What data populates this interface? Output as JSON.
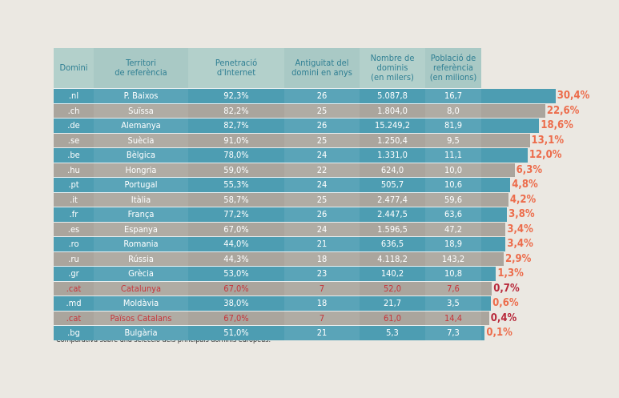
{
  "chart_data": {
    "type": "table",
    "headers": [
      "Domini",
      "Territori\nde referència",
      "Penetració\nd'Internet",
      "Antiguitat del\ndomini en anys",
      "Nombre de\ndominis\n(en milers)",
      "Població de\nreferència\n(en milions)"
    ],
    "rows": [
      {
        "domini": ".nl",
        "territori": "P. Baixos",
        "penetracio": "92,3%",
        "antiguitat": "26",
        "dominis": "5.087,8",
        "poblacio": "16,7",
        "ratio": "30,4%",
        "value": 30.4,
        "highlight": false
      },
      {
        "domini": ".ch",
        "territori": "Suïssa",
        "penetracio": "82,2%",
        "antiguitat": "25",
        "dominis": "1.804,0",
        "poblacio": "8,0",
        "ratio": "22,6%",
        "value": 22.6,
        "highlight": false
      },
      {
        "domini": ".de",
        "territori": "Alemanya",
        "penetracio": "82,7%",
        "antiguitat": "26",
        "dominis": "15.249,2",
        "poblacio": "81,9",
        "ratio": "18,6%",
        "value": 18.6,
        "highlight": false
      },
      {
        "domini": ".se",
        "territori": "Suècia",
        "penetracio": "91,0%",
        "antiguitat": "25",
        "dominis": "1.250,4",
        "poblacio": "9,5",
        "ratio": "13,1%",
        "value": 13.1,
        "highlight": false
      },
      {
        "domini": ".be",
        "territori": "Bèlgica",
        "penetracio": "78,0%",
        "antiguitat": "24",
        "dominis": "1.331,0",
        "poblacio": "11,1",
        "ratio": "12,0%",
        "value": 12.0,
        "highlight": false
      },
      {
        "domini": ".hu",
        "territori": "Hongria",
        "penetracio": "59,0%",
        "antiguitat": "22",
        "dominis": "624,0",
        "poblacio": "10,0",
        "ratio": "6,3%",
        "value": 6.3,
        "highlight": false
      },
      {
        "domini": ".pt",
        "territori": "Portugal",
        "penetracio": "55,3%",
        "antiguitat": "24",
        "dominis": "505,7",
        "poblacio": "10,6",
        "ratio": "4,8%",
        "value": 4.8,
        "highlight": false
      },
      {
        "domini": ".it",
        "territori": "Itàlia",
        "penetracio": "58,7%",
        "antiguitat": "25",
        "dominis": "2.477,4",
        "poblacio": "59,6",
        "ratio": "4,2%",
        "value": 4.2,
        "highlight": false
      },
      {
        "domini": ".fr",
        "territori": "França",
        "penetracio": "77,2%",
        "antiguitat": "26",
        "dominis": "2.447,5",
        "poblacio": "63,6",
        "ratio": "3,8%",
        "value": 3.8,
        "highlight": false
      },
      {
        "domini": ".es",
        "territori": "Espanya",
        "penetracio": "67,0%",
        "antiguitat": "24",
        "dominis": "1.596,5",
        "poblacio": "47,2",
        "ratio": "3,4%",
        "value": 3.4,
        "highlight": false
      },
      {
        "domini": ".ro",
        "territori": "Romania",
        "penetracio": "44,0%",
        "antiguitat": "21",
        "dominis": "636,5",
        "poblacio": "18,9",
        "ratio": "3,4%",
        "value": 3.4,
        "highlight": false
      },
      {
        "domini": ".ru",
        "territori": "Rússia",
        "penetracio": "44,3%",
        "antiguitat": "18",
        "dominis": "4.118,2",
        "poblacio": "143,2",
        "ratio": "2,9%",
        "value": 2.9,
        "highlight": false
      },
      {
        "domini": ".gr",
        "territori": "Grècia",
        "penetracio": "53,0%",
        "antiguitat": "23",
        "dominis": "140,2",
        "poblacio": "10,8",
        "ratio": "1,3%",
        "value": 1.3,
        "highlight": false
      },
      {
        "domini": ".cat",
        "territori": "Catalunya",
        "penetracio": "67,0%",
        "antiguitat": "7",
        "dominis": "52,0",
        "poblacio": "7,6",
        "ratio": "0,7%",
        "value": 0.7,
        "highlight": true
      },
      {
        "domini": ".md",
        "territori": "Moldàvia",
        "penetracio": "38,0%",
        "antiguitat": "18",
        "dominis": "21,7",
        "poblacio": "3,5",
        "ratio": "0,6%",
        "value": 0.6,
        "highlight": false
      },
      {
        "domini": ".cat",
        "territori": "Països Catalans",
        "penetracio": "67,0%",
        "antiguitat": "7",
        "dominis": "61,0",
        "poblacio": "14,4",
        "ratio": "0,4%",
        "value": 0.4,
        "highlight": true
      },
      {
        "domini": ".bg",
        "territori": "Bulgària",
        "penetracio": "51,0%",
        "antiguitat": "21",
        "dominis": "5,3",
        "poblacio": "7,3",
        "ratio": "0,1%",
        "value": 0.1,
        "highlight": false
      }
    ],
    "colors": {
      "row_teal": "#4d9db2",
      "row_gray": "#aaa59d",
      "header": "#a9c9c5",
      "header_text": "#2f7f93",
      "pct": "#ec6c4b",
      "pct_highlight": "#b8283a",
      "highlight_text": "#c7343a"
    }
  },
  "note": "Comparativa sobre una selecció dels principals dominis europeus."
}
